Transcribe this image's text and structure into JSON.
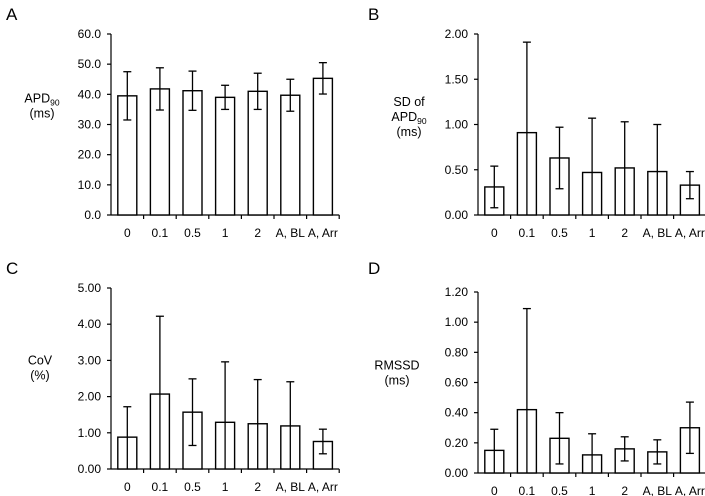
{
  "chart_data": [
    {
      "panel": "A",
      "type": "bar",
      "ylabel_lines": [
        "APD90",
        "(ms)"
      ],
      "ylabel_subscript": {
        "line": 0,
        "base": "APD",
        "sub": "90"
      },
      "categories": [
        "0",
        "0.1",
        "0.5",
        "1",
        "2",
        "A, BL",
        "A, Arr"
      ],
      "values": [
        39.5,
        41.8,
        41.2,
        39.0,
        41.0,
        39.7,
        45.3
      ],
      "error_up": [
        8.0,
        7.0,
        6.5,
        4.0,
        6.0,
        5.3,
        5.2
      ],
      "error_down": [
        8.0,
        7.0,
        6.5,
        4.0,
        6.0,
        5.3,
        5.2
      ],
      "ylim": [
        0,
        60
      ],
      "yticks": [
        0,
        10,
        20,
        30,
        40,
        50,
        60
      ],
      "ytick_labels": [
        "0.0",
        "10.0",
        "20.0",
        "30.0",
        "40.0",
        "50.0",
        "60.0"
      ],
      "grid": false
    },
    {
      "panel": "B",
      "type": "bar",
      "ylabel_lines": [
        "SD of",
        "APD90",
        "(ms)"
      ],
      "ylabel_subscript": {
        "line": 1,
        "base": "APD",
        "sub": "90"
      },
      "categories": [
        "0",
        "0.1",
        "0.5",
        "1",
        "2",
        "A, BL",
        "A, Arr"
      ],
      "values": [
        0.31,
        0.91,
        0.63,
        0.47,
        0.52,
        0.48,
        0.33
      ],
      "error_up": [
        0.23,
        1.0,
        0.34,
        0.6,
        0.51,
        0.52,
        0.15
      ],
      "error_down": [
        0.23,
        0.91,
        0.34,
        0.47,
        0.52,
        0.48,
        0.15
      ],
      "ylim": [
        0,
        2
      ],
      "yticks": [
        0,
        0.5,
        1,
        1.5,
        2
      ],
      "ytick_labels": [
        "0.00",
        "0.50",
        "1.00",
        "1.50",
        "2.00"
      ],
      "grid": false
    },
    {
      "panel": "C",
      "type": "bar",
      "ylabel_lines": [
        "CoV",
        "(%)"
      ],
      "categories": [
        "0",
        "0.1",
        "0.5",
        "1",
        "2",
        "A, BL",
        "A, Arr"
      ],
      "values": [
        0.88,
        2.07,
        1.57,
        1.29,
        1.25,
        1.19,
        0.76
      ],
      "error_up": [
        0.84,
        2.15,
        0.92,
        1.67,
        1.22,
        1.22,
        0.34
      ],
      "error_down": [
        0.88,
        2.07,
        0.92,
        1.29,
        1.25,
        1.19,
        0.34
      ],
      "ylim": [
        0,
        5
      ],
      "yticks": [
        0,
        1,
        2,
        3,
        4,
        5
      ],
      "ytick_labels": [
        "0.00",
        "1.00",
        "2.00",
        "3.00",
        "4.00",
        "5.00"
      ],
      "grid": false
    },
    {
      "panel": "D",
      "type": "bar",
      "ylabel_lines": [
        "RMSSD",
        "(ms)"
      ],
      "categories": [
        "0",
        "0.1",
        "0.5",
        "1",
        "2",
        "A, BL",
        "A, Arr"
      ],
      "values": [
        0.15,
        0.42,
        0.23,
        0.12,
        0.16,
        0.14,
        0.3
      ],
      "error_up": [
        0.14,
        0.67,
        0.17,
        0.14,
        0.08,
        0.08,
        0.17
      ],
      "error_down": [
        0.15,
        0.42,
        0.17,
        0.12,
        0.08,
        0.08,
        0.17
      ],
      "ylim": [
        0,
        1.2
      ],
      "yticks": [
        0,
        0.2,
        0.4,
        0.6,
        0.8,
        1.0,
        1.2
      ],
      "ytick_labels": [
        "0.00",
        "0.20",
        "0.40",
        "0.60",
        "0.80",
        "1.00",
        "1.20"
      ],
      "grid": false
    }
  ]
}
